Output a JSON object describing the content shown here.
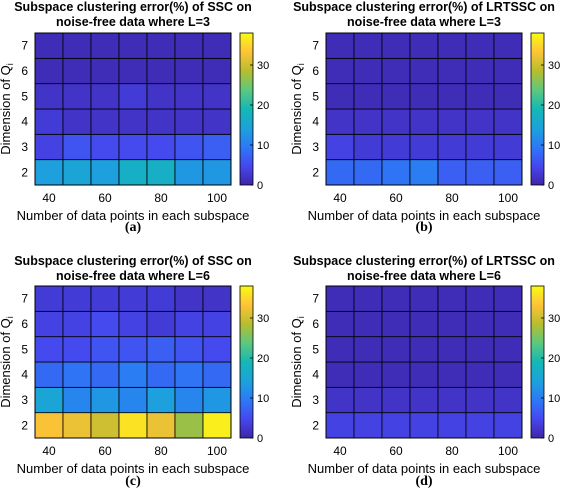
{
  "chart_data": [
    {
      "type": "heatmap",
      "title": "Subspace clustering error(%) of SSC on noise-free data where L=3",
      "title_lines": [
        "Subspace clustering error(%) of SSC on",
        "noise-free data where L=3"
      ],
      "xlabel": "Number of data points in each subspace",
      "ylabel": "Dimension of Q",
      "ylabel_sub": "i",
      "caption": "(a)",
      "x": [
        40,
        50,
        60,
        70,
        80,
        90,
        100
      ],
      "y": [
        2,
        3,
        4,
        5,
        6,
        7
      ],
      "xticks": [
        "40",
        "60",
        "80",
        "100"
      ],
      "yticks": [
        "7",
        "6",
        "5",
        "4",
        "3",
        "2"
      ],
      "colorbar": {
        "min": 0,
        "max": 38,
        "ticks": [
          "0",
          "10",
          "20",
          "30"
        ]
      },
      "values": [
        [
          14,
          15,
          14,
          17,
          17,
          13,
          13
        ],
        [
          4,
          6,
          5,
          5,
          5,
          6,
          7
        ],
        [
          3,
          2,
          2,
          2,
          2,
          2,
          2
        ],
        [
          2,
          2,
          2,
          3,
          2,
          2,
          2
        ],
        [
          1,
          1,
          1,
          1,
          1,
          1,
          1
        ],
        [
          1,
          1,
          1,
          1,
          1,
          1,
          1
        ]
      ]
    },
    {
      "type": "heatmap",
      "title": "Subspace clustering error(%) of LRTSSC on noise-free data where L=3",
      "title_lines": [
        "Subspace clustering error(%) of LRTSSC on",
        "noise-free data where L=3"
      ],
      "xlabel": "Number of data points in each subspace",
      "ylabel": "Dimension of Q",
      "ylabel_sub": "i",
      "caption": "(b)",
      "x": [
        40,
        50,
        60,
        70,
        80,
        90,
        100
      ],
      "y": [
        2,
        3,
        4,
        5,
        6,
        7
      ],
      "xticks": [
        "40",
        "60",
        "80",
        "100"
      ],
      "yticks": [
        "7",
        "6",
        "5",
        "4",
        "3",
        "2"
      ],
      "colorbar": {
        "min": 0,
        "max": 38,
        "ticks": [
          "0",
          "10",
          "20",
          "30"
        ]
      },
      "values": [
        [
          8,
          8,
          9,
          10,
          7,
          7,
          7
        ],
        [
          4,
          3,
          3,
          3,
          3,
          3,
          3
        ],
        [
          2,
          2,
          2,
          2,
          2,
          2,
          2
        ],
        [
          1,
          1,
          1,
          1,
          1,
          1,
          1
        ],
        [
          1,
          1,
          1,
          1,
          1,
          1,
          1
        ],
        [
          1,
          1,
          1,
          1,
          1,
          1,
          1
        ]
      ]
    },
    {
      "type": "heatmap",
      "title": "Subspace clustering error(%) of SSC on noise-free data where L=6",
      "title_lines": [
        "Subspace clustering error(%) of SSC on",
        "noise-free data where L=6"
      ],
      "xlabel": "Number of data points in each subspace",
      "ylabel": "Dimension of Q",
      "ylabel_sub": "i",
      "caption": "(c)",
      "x": [
        40,
        50,
        60,
        70,
        80,
        90,
        100
      ],
      "y": [
        2,
        3,
        4,
        5,
        6,
        7
      ],
      "xticks": [
        "40",
        "60",
        "80",
        "100"
      ],
      "yticks": [
        "7",
        "6",
        "5",
        "4",
        "3",
        "2"
      ],
      "colorbar": {
        "min": 0,
        "max": 38,
        "ticks": [
          "0",
          "10",
          "20",
          "30"
        ]
      },
      "values": [
        [
          33,
          32,
          30,
          36,
          32,
          27,
          37
        ],
        [
          15,
          11,
          13,
          11,
          14,
          11,
          13
        ],
        [
          8,
          9,
          8,
          10,
          8,
          9,
          8
        ],
        [
          5,
          5,
          6,
          6,
          7,
          6,
          5
        ],
        [
          4,
          4,
          5,
          4,
          3,
          4,
          4
        ],
        [
          3,
          3,
          3,
          3,
          3,
          2,
          2
        ]
      ]
    },
    {
      "type": "heatmap",
      "title": "Subspace clustering error(%) of LRTSSC on noise-free data where L=6",
      "title_lines": [
        "Subspace clustering error(%) of LRTSSC on",
        "noise-free data where L=6"
      ],
      "xlabel": "Number of data points in each subspace",
      "ylabel": "Dimension of Q",
      "ylabel_sub": "i",
      "caption": "(d)",
      "x": [
        40,
        50,
        60,
        70,
        80,
        90,
        100
      ],
      "y": [
        2,
        3,
        4,
        5,
        6,
        7
      ],
      "xticks": [
        "40",
        "60",
        "80",
        "100"
      ],
      "yticks": [
        "7",
        "6",
        "5",
        "4",
        "3",
        "2"
      ],
      "colorbar": {
        "min": 0,
        "max": 38,
        "ticks": [
          "0",
          "10",
          "20",
          "30"
        ]
      },
      "values": [
        [
          4,
          4,
          4,
          4,
          4,
          4,
          4
        ],
        [
          2,
          2,
          2,
          2,
          2,
          2,
          2
        ],
        [
          1,
          1,
          1,
          1,
          1,
          1,
          1
        ],
        [
          1,
          1,
          1,
          1,
          1,
          1,
          1
        ],
        [
          1,
          1,
          1,
          1,
          1,
          1,
          1
        ],
        [
          1,
          1,
          1,
          1,
          1,
          1,
          1
        ]
      ]
    }
  ]
}
